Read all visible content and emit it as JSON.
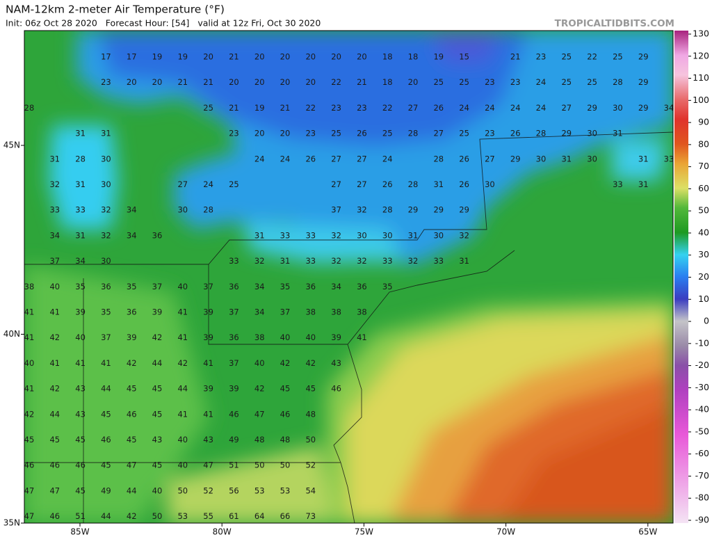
{
  "header": {
    "title": "NAM-12km 2-meter Air Temperature (°F)",
    "subtitle": "Init: 06z Oct 28 2020   Forecast Hour: [54]   valid at 12z Fri, Oct 30 2020",
    "site": "TROPICALTIDBITS.COM"
  },
  "map": {
    "lat_labels": [
      "45N",
      "40N",
      "35N"
    ],
    "lon_labels": [
      "85W",
      "80W",
      "75W",
      "70W",
      "65W"
    ],
    "temperatures": [
      [
        null,
        null,
        null,
        17,
        17,
        19,
        19,
        20,
        21,
        20,
        20,
        20,
        20,
        20,
        18,
        18,
        19,
        15,
        null,
        21,
        23,
        25,
        22,
        25,
        29
      ],
      [
        null,
        null,
        null,
        23,
        20,
        20,
        21,
        21,
        20,
        20,
        20,
        20,
        22,
        21,
        18,
        20,
        25,
        25,
        23,
        23,
        24,
        25,
        25,
        28,
        29
      ],
      [
        28,
        null,
        null,
        null,
        null,
        null,
        null,
        25,
        21,
        19,
        21,
        22,
        23,
        23,
        22,
        27,
        26,
        24,
        24,
        24,
        24,
        27,
        29,
        30,
        29,
        34
      ],
      [
        null,
        null,
        31,
        31,
        null,
        null,
        null,
        null,
        23,
        20,
        20,
        23,
        25,
        26,
        25,
        28,
        27,
        25,
        23,
        26,
        28,
        29,
        30,
        31
      ],
      [
        null,
        31,
        28,
        30,
        null,
        null,
        null,
        null,
        null,
        24,
        24,
        26,
        27,
        27,
        24,
        null,
        28,
        26,
        27,
        29,
        30,
        31,
        30,
        null,
        31,
        33
      ],
      [
        null,
        32,
        31,
        30,
        null,
        null,
        27,
        24,
        25,
        null,
        null,
        null,
        27,
        27,
        26,
        28,
        31,
        26,
        30,
        null,
        null,
        null,
        null,
        33,
        31
      ],
      [
        null,
        33,
        33,
        32,
        34,
        null,
        30,
        28,
        null,
        null,
        null,
        null,
        37,
        32,
        28,
        29,
        29,
        29
      ],
      [
        null,
        34,
        31,
        32,
        34,
        36,
        null,
        null,
        null,
        31,
        33,
        33,
        32,
        30,
        30,
        31,
        30,
        32
      ],
      [
        null,
        37,
        34,
        30,
        null,
        null,
        null,
        null,
        33,
        32,
        31,
        33,
        32,
        32,
        33,
        32,
        33,
        31
      ],
      [
        38,
        40,
        35,
        36,
        35,
        37,
        40,
        37,
        36,
        34,
        35,
        36,
        34,
        36,
        35
      ],
      [
        41,
        41,
        39,
        35,
        36,
        39,
        41,
        39,
        37,
        34,
        37,
        38,
        38,
        38
      ],
      [
        41,
        42,
        40,
        37,
        39,
        42,
        41,
        39,
        36,
        38,
        40,
        40,
        39,
        41
      ],
      [
        40,
        41,
        41,
        41,
        42,
        44,
        42,
        41,
        37,
        40,
        42,
        42,
        43
      ],
      [
        41,
        42,
        43,
        44,
        45,
        45,
        44,
        39,
        39,
        42,
        45,
        45,
        46
      ],
      [
        42,
        44,
        43,
        45,
        46,
        45,
        41,
        41,
        46,
        47,
        46,
        48
      ],
      [
        45,
        45,
        45,
        46,
        45,
        43,
        40,
        43,
        49,
        48,
        48,
        50
      ],
      [
        46,
        46,
        46,
        45,
        47,
        45,
        40,
        47,
        51,
        50,
        50,
        52
      ],
      [
        47,
        47,
        45,
        49,
        44,
        40,
        50,
        52,
        56,
        53,
        53,
        54
      ],
      [
        47,
        46,
        51,
        44,
        42,
        50,
        53,
        55,
        61,
        64,
        66,
        73
      ]
    ]
  },
  "colorbar": {
    "ticks": [
      130,
      120,
      110,
      100,
      90,
      80,
      70,
      60,
      50,
      40,
      30,
      20,
      10,
      0,
      -10,
      -20,
      -30,
      -40,
      -50,
      -60,
      -70,
      -80,
      -90
    ]
  }
}
